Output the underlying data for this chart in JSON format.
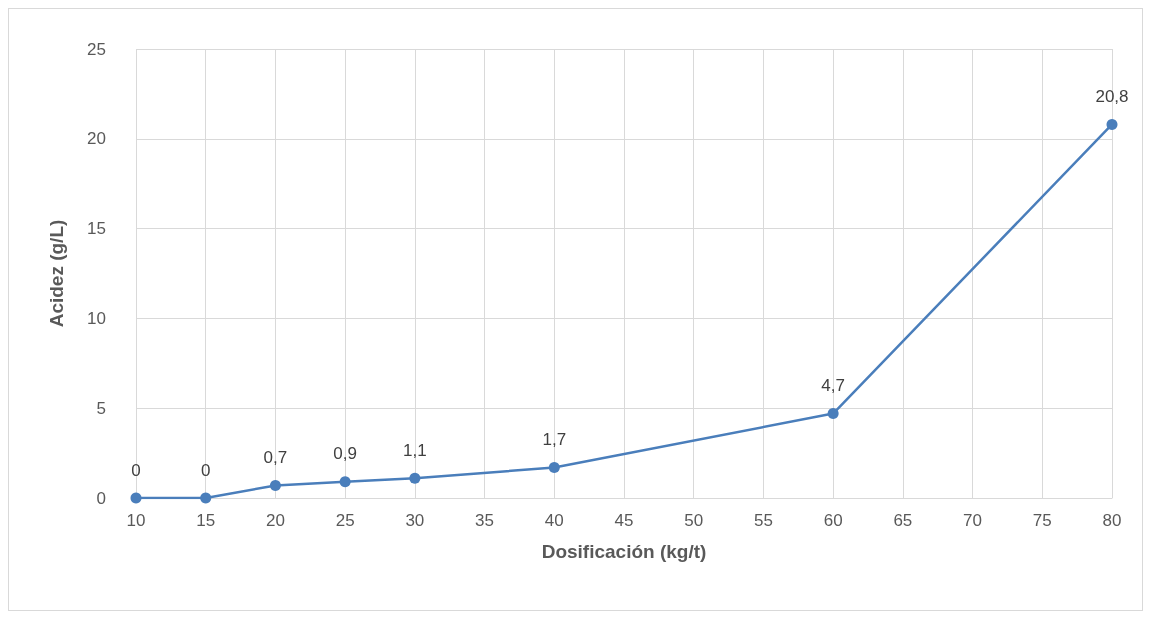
{
  "chart_data": {
    "type": "line",
    "xlabel": "Dosificación (kg/t)",
    "ylabel": "Acidez (g/L)",
    "x": [
      10,
      15,
      20,
      25,
      30,
      40,
      60,
      80
    ],
    "series": [
      {
        "color": "#4a7ebb",
        "values": [
          0,
          0,
          0.7,
          0.9,
          1.1,
          1.7,
          4.7,
          20.8
        ],
        "value_labels": [
          "0",
          "0",
          "0,7",
          "0,9",
          "1,1",
          "1,7",
          "4,7",
          "20,8"
        ]
      }
    ],
    "xlim": [
      10,
      80
    ],
    "xticks": [
      10,
      15,
      20,
      25,
      30,
      35,
      40,
      45,
      50,
      55,
      60,
      65,
      70,
      75,
      80
    ],
    "ylim": [
      0,
      25
    ],
    "yticks": [
      0,
      5,
      10,
      15,
      20,
      25
    ],
    "grid": true,
    "marker": "circle",
    "line_style": "solid"
  }
}
